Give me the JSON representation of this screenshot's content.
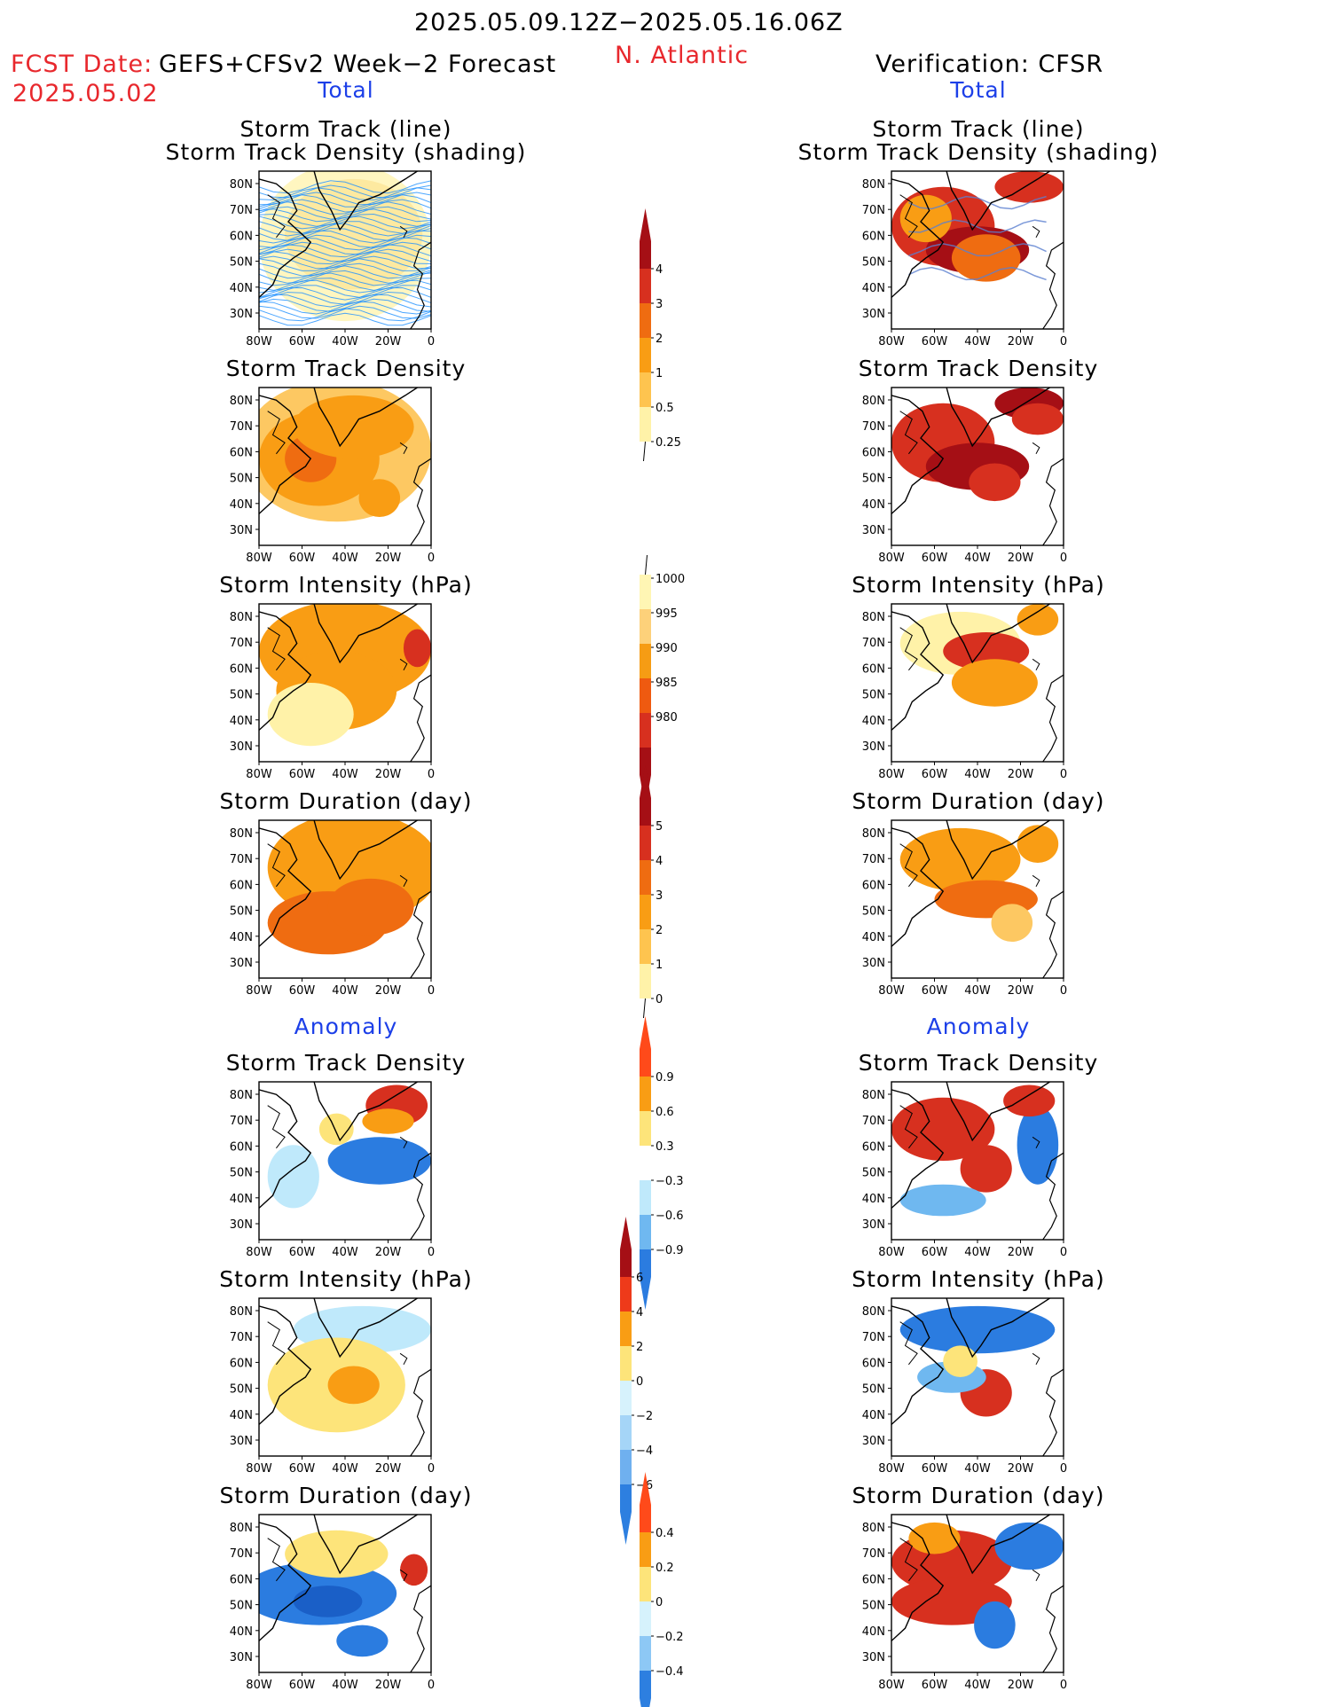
{
  "header": {
    "date_range": "2025.05.09.12Z−2025.05.16.06Z",
    "region": "N. Atlantic",
    "fcst_label": "FCST Date:",
    "fcst_date": "2025.05.02",
    "forecast_model": "GEFS+CFSv2 Week−2 Forecast",
    "verification": "Verification: CFSR"
  },
  "sections": {
    "total": "Total",
    "anomaly": "Anomaly"
  },
  "panel_titles": {
    "track_line": "Storm Track (line)",
    "track_density_shading": "Storm Track Density (shading)",
    "track_density": "Storm Track Density",
    "intensity": "Storm Intensity (hPa)",
    "duration": "Storm Duration (day)"
  },
  "axes": {
    "lat_ticks": [
      "80N",
      "70N",
      "60N",
      "50N",
      "40N",
      "30N"
    ],
    "lon_ticks": [
      "80W",
      "60W",
      "40W",
      "20W",
      "0"
    ]
  },
  "colorbars": [
    {
      "id": "density_total",
      "labels": [
        "4",
        "3",
        "2",
        "1",
        "0.5",
        "0.25"
      ],
      "colors": [
        "#a50f15",
        "#d7301f",
        "#ef6c11",
        "#f99d14",
        "#fec44f",
        "#fff2a8"
      ]
    },
    {
      "id": "intensity_total",
      "labels": [
        "1000",
        "995",
        "990",
        "985",
        "980"
      ],
      "colors": [
        "#fff6b4",
        "#fdd17a",
        "#f69c14",
        "#ef5a10",
        "#d7301f",
        "#a50f15"
      ]
    },
    {
      "id": "duration_total",
      "labels": [
        "5",
        "4",
        "3",
        "2",
        "1",
        "0"
      ],
      "colors": [
        "#a50f15",
        "#d7301f",
        "#ef6c11",
        "#f99d14",
        "#fec44f",
        "#fff2a8"
      ]
    },
    {
      "id": "density_anom",
      "labels": [
        "0.9",
        "0.6",
        "0.3",
        "−0.3",
        "−0.6",
        "−0.9"
      ],
      "colors": [
        "#ff4a1a",
        "#f99d14",
        "#fde47a",
        "#ffffff",
        "#bfe9fb",
        "#6fb8f0",
        "#2b7ce0"
      ]
    },
    {
      "id": "intensity_anom",
      "labels": [
        "6",
        "4",
        "2",
        "0",
        "−2",
        "−4",
        "−6"
      ],
      "colors": [
        "#a50f15",
        "#ee3a1a",
        "#f99d14",
        "#fde47a",
        "#d6f2fc",
        "#a5d5f7",
        "#6fb0ef",
        "#2d7fe0"
      ]
    },
    {
      "id": "duration_anom",
      "labels": [
        "0.4",
        "0.2",
        "0",
        "−0.2",
        "−0.4"
      ],
      "colors": [
        "#ff4a1a",
        "#f99d14",
        "#fde47a",
        "#d6f2fc",
        "#8dc8f5",
        "#2d7fe0"
      ]
    }
  ],
  "colors": {
    "title_red": "#e8282d",
    "section_blue": "#1c3fe8",
    "track_line_blue": "#1e90ff"
  }
}
